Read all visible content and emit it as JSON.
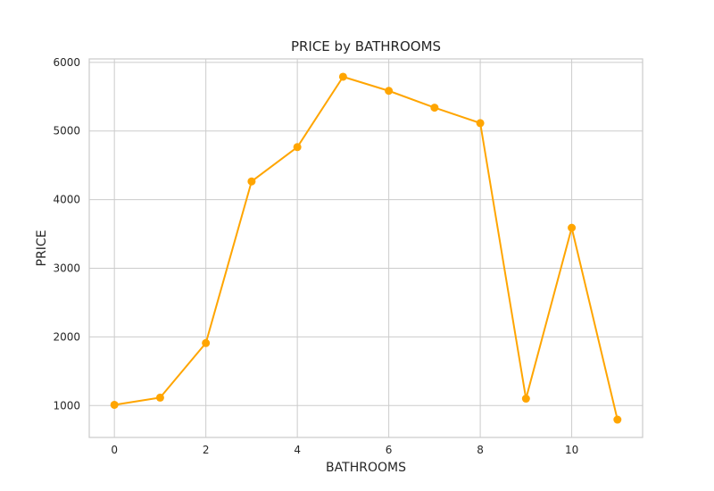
{
  "chart_data": {
    "type": "line",
    "title": "PRICE by BATHROOMS",
    "xlabel": "BATHROOMS",
    "ylabel": "PRICE",
    "x": [
      0,
      1,
      2,
      3,
      4,
      5,
      6,
      7,
      8,
      9,
      10,
      11
    ],
    "series": [
      {
        "values": [
          1010,
          1115,
          1910,
          4265,
          4765,
          5790,
          5585,
          5340,
          5115,
          1100,
          3590,
          795
        ]
      }
    ],
    "xlim": [
      -0.55,
      11.55
    ],
    "ylim": [
      535,
      6050
    ],
    "xticks": [
      0,
      2,
      4,
      6,
      8,
      10
    ],
    "yticks": [
      1000,
      2000,
      3000,
      4000,
      5000,
      6000
    ],
    "grid": true,
    "legend": "none",
    "colors": {
      "line": "#FFA500",
      "grid": "#cccccc",
      "frame": "#cccccc"
    }
  }
}
